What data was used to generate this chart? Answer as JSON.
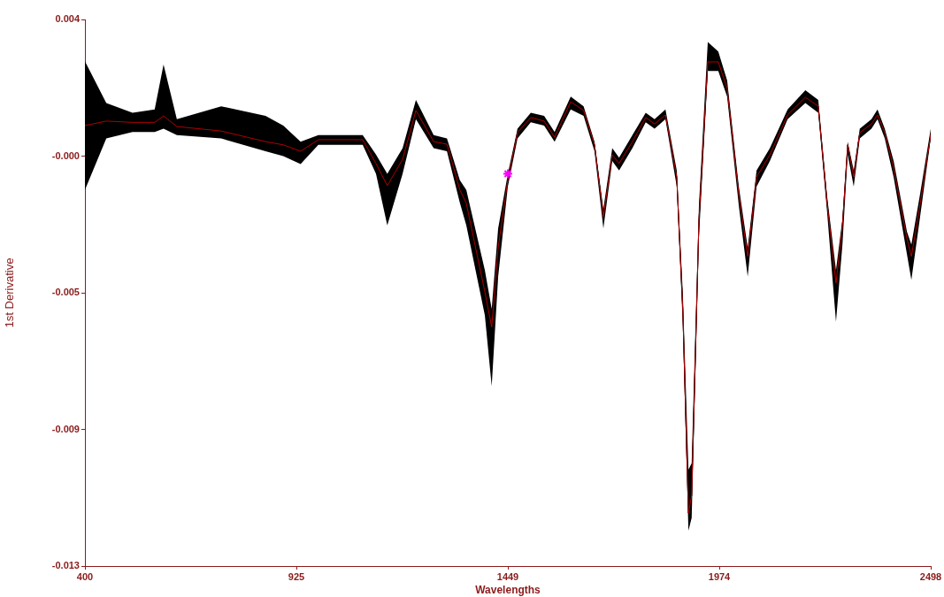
{
  "chart_data": {
    "type": "line",
    "xlabel": "Wavelengths",
    "ylabel": "1st Derivative",
    "x": [
      400,
      453,
      518,
      573,
      595,
      628,
      738,
      848,
      892,
      935,
      979,
      1089,
      1122,
      1150,
      1188,
      1221,
      1265,
      1298,
      1330,
      1346,
      1392,
      1409,
      1425,
      1449,
      1473,
      1506,
      1539,
      1565,
      1605,
      1637,
      1664,
      1686,
      1708,
      1725,
      1758,
      1791,
      1813,
      1840,
      1868,
      1883,
      1897,
      1905,
      1923,
      1945,
      1971,
      1993,
      2022,
      2044,
      2066,
      2099,
      2143,
      2187,
      2219,
      2241,
      2263,
      2279,
      2292,
      2307,
      2322,
      2351,
      2366,
      2384,
      2406,
      2439,
      2450,
      2472,
      2498
    ],
    "series": [
      {
        "color": "#000000",
        "values": [
          0.0007,
          0.00084,
          0.0008,
          0.0008,
          0.001,
          0.00067,
          0.00053,
          0.0002,
          0.0001,
          -0.0001,
          0.00026,
          0.00026,
          -0.00048,
          -0.00117,
          -0.00035,
          0.00117,
          0.0002,
          0.00012,
          -0.0013,
          -0.00172,
          -0.00447,
          -0.00557,
          -0.0031,
          -0.00098,
          0.00048,
          0.00095,
          0.00084,
          0.00034,
          0.00144,
          0.00117,
          0.0001,
          -0.00213,
          -0.00021,
          -0.00048,
          0.0002,
          0.00095,
          0.00075,
          0.00103,
          -0.0009,
          -0.00502,
          -0.01135,
          -0.0108,
          -0.00227,
          0.00268,
          0.00268,
          0.00185,
          -0.00145,
          -0.00337,
          -0.0009,
          -0.00021,
          0.00103,
          0.00158,
          0.0013,
          -0.00172,
          -0.0042,
          -0.00241,
          0.0001,
          -0.0009,
          0.00048,
          0.00075,
          0.00103,
          0.00048,
          -0.00062,
          -0.00282,
          -0.00337,
          -0.00172,
          0.00042
        ],
        "lower": [
          -0.0013,
          0.0003,
          0.0005,
          0.0005,
          0.0006,
          0.0004,
          0.0003,
          -0.0001,
          -0.00025,
          -0.0005,
          0.0001,
          0.0001,
          -0.0008,
          -0.0024,
          -0.0008,
          0.0009,
          0,
          -0.0001,
          -0.0017,
          -0.0024,
          -0.0052,
          -0.0074,
          -0.004,
          -0.0012,
          0.0003,
          0.0008,
          0.0007,
          0.0002,
          0.0012,
          0.001,
          -0.0001,
          -0.0025,
          -0.0004,
          -0.0007,
          0,
          0.0008,
          0.0006,
          0.0009,
          -0.0012,
          -0.0055,
          -0.0119,
          -0.0115,
          -0.0028,
          0.0024,
          0.0024,
          0.0016,
          -0.0018,
          -0.004,
          -0.0012,
          -0.0004,
          0.0009,
          0.0014,
          0.0011,
          -0.002,
          -0.0054,
          -0.003,
          -0.0002,
          -0.0012,
          0.0003,
          0.0006,
          0.0009,
          0.0003,
          -0.0009,
          -0.0033,
          -0.0041,
          -0.0021,
          0.0003
        ],
        "upper": [
          0.0027,
          0.0014,
          0.0011,
          0.0012,
          0.0026,
          0.0009,
          0.0013,
          0.001,
          0.0007,
          0.0002,
          0.0004,
          0.0004,
          -0.0002,
          -0.0008,
          0,
          0.0015,
          0.0004,
          0.0003,
          -0.001,
          -0.0013,
          -0.0038,
          -0.005,
          -0.0025,
          -0.0008,
          0.0006,
          0.0011,
          0.001,
          0.0005,
          0.0016,
          0.0013,
          0.0002,
          -0.0019,
          0,
          -0.0003,
          0.0004,
          0.0011,
          0.0009,
          0.0012,
          -0.0007,
          -0.0045,
          -0.01,
          -0.0098,
          -0.0018,
          0.0033,
          0.003,
          0.0021,
          -0.0012,
          -0.0031,
          -0.0007,
          0,
          0.0012,
          0.0018,
          0.0015,
          -0.0015,
          -0.0038,
          -0.0022,
          0.0002,
          -0.0007,
          0.0006,
          0.0009,
          0.0012,
          0.0006,
          -0.0004,
          -0.0026,
          -0.003,
          -0.0014,
          0.0006
        ]
      },
      {
        "color": "#b00000",
        "values": [
          0.0007,
          0.00084,
          0.0008,
          0.0008,
          0.001,
          0.00067,
          0.00053,
          0.0002,
          0.0001,
          -0.0001,
          0.00026,
          0.00026,
          -0.00048,
          -0.00117,
          -0.00035,
          0.00117,
          0.0002,
          0.00012,
          -0.0013,
          -0.00172,
          -0.00447,
          -0.00557,
          -0.0031,
          -0.00098,
          0.00048,
          0.00095,
          0.00084,
          0.00034,
          0.00144,
          0.00117,
          0.0001,
          -0.00213,
          -0.00021,
          -0.00048,
          0.0002,
          0.00095,
          0.00075,
          0.00103,
          -0.0009,
          -0.00502,
          -0.01135,
          -0.0108,
          -0.00227,
          0.00268,
          0.00268,
          0.00185,
          -0.00145,
          -0.00337,
          -0.0009,
          -0.00021,
          0.00103,
          0.00158,
          0.0013,
          -0.00172,
          -0.0042,
          -0.00241,
          0.0001,
          -0.0009,
          0.00048,
          0.00075,
          0.00103,
          0.00048,
          -0.00062,
          -0.00282,
          -0.00337,
          -0.00172,
          0.00042
        ]
      },
      {
        "type": "scatter",
        "marker": "cross",
        "color": "#ff00ff",
        "values": [
          null,
          null,
          null,
          null,
          null,
          null,
          null,
          null,
          null,
          null,
          null,
          null,
          null,
          null,
          null,
          null,
          null,
          null,
          null,
          null,
          null,
          null,
          null,
          -0.0008,
          null,
          null,
          null,
          null,
          null,
          null,
          null,
          null,
          null,
          null,
          null,
          null,
          null,
          null,
          null,
          null,
          null,
          null,
          null,
          null,
          null,
          null,
          null,
          null,
          null,
          null,
          null,
          null,
          null,
          null,
          null,
          null,
          null,
          null,
          null,
          null,
          null,
          null,
          null,
          null,
          null,
          null,
          null
        ]
      }
    ],
    "xlim": [
      400,
      2498
    ],
    "xticks": [
      400,
      {
        "value": 924.5,
        "label": "925"
      },
      1449,
      {
        "value": 1973.5,
        "label": "1974"
      },
      2498
    ],
    "ylim": [
      -0.013,
      0.004
    ],
    "yticks": [
      -0.013,
      {
        "value": -0.00875,
        "label": "-0.009"
      },
      {
        "value": -0.0045,
        "label": "-0.005"
      },
      {
        "value": -0.00025,
        "label": "-0.000"
      },
      0.004
    ],
    "grid": false,
    "legend": false,
    "marker": "none",
    "line_style": "solid"
  }
}
